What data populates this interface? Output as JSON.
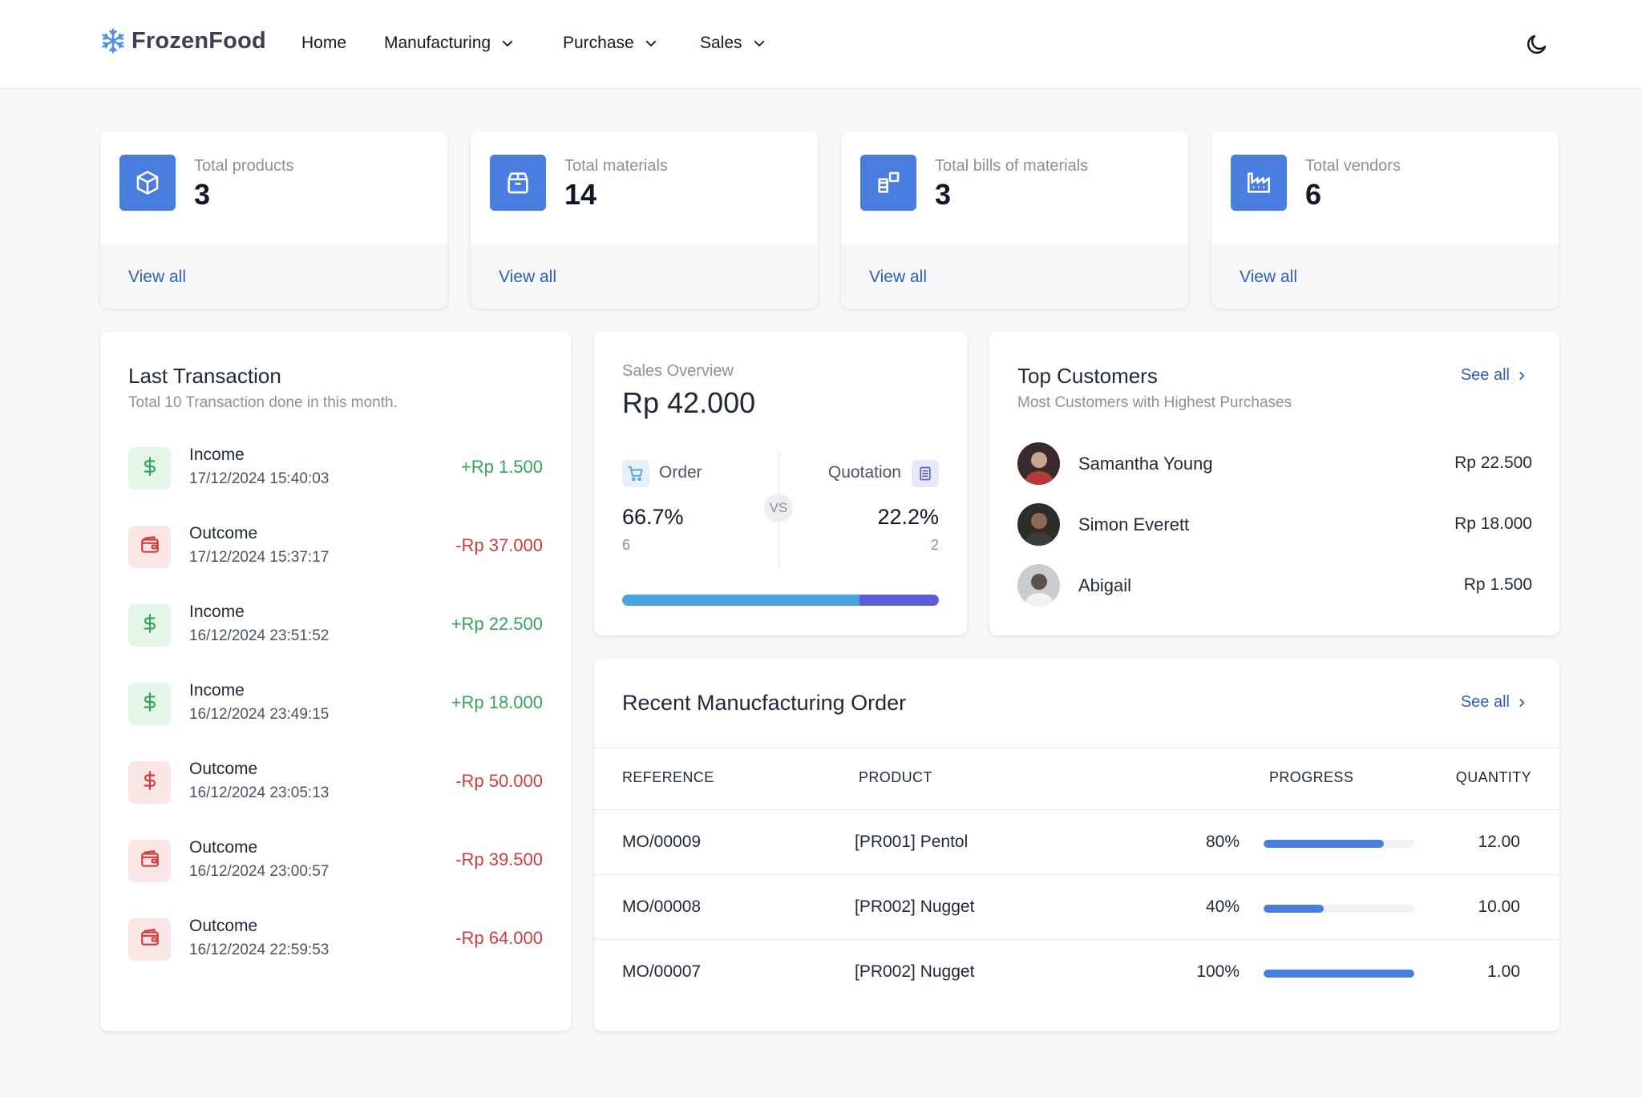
{
  "brand": {
    "name": "FrozenFood"
  },
  "nav": {
    "home": "Home",
    "manufacturing": "Manufacturing",
    "purchase": "Purchase",
    "sales": "Sales"
  },
  "stats": [
    {
      "label": "Total products",
      "value": "3",
      "link": "View all",
      "icon": "cube-icon"
    },
    {
      "label": "Total materials",
      "value": "14",
      "link": "View all",
      "icon": "package-icon"
    },
    {
      "label": "Total bills of materials",
      "value": "3",
      "link": "View all",
      "icon": "blocks-icon"
    },
    {
      "label": "Total vendors",
      "value": "6",
      "link": "View all",
      "icon": "factory-icon"
    }
  ],
  "last_transaction": {
    "title": "Last Transaction",
    "subtitle": "Total 10 Transaction done in this month.",
    "items": [
      {
        "type": "Income",
        "date": "17/12/2024 15:40:03",
        "amount": "+Rp 1.500",
        "kind": "income",
        "icon": "dollar-icon"
      },
      {
        "type": "Outcome",
        "date": "17/12/2024 15:37:17",
        "amount": "-Rp 37.000",
        "kind": "outcome",
        "icon": "wallet-icon"
      },
      {
        "type": "Income",
        "date": "16/12/2024 23:51:52",
        "amount": "+Rp 22.500",
        "kind": "income",
        "icon": "dollar-icon"
      },
      {
        "type": "Income",
        "date": "16/12/2024 23:49:15",
        "amount": "+Rp 18.000",
        "kind": "income",
        "icon": "dollar-icon"
      },
      {
        "type": "Outcome",
        "date": "16/12/2024 23:05:13",
        "amount": "-Rp 50.000",
        "kind": "outcome",
        "icon": "dollar-icon"
      },
      {
        "type": "Outcome",
        "date": "16/12/2024 23:00:57",
        "amount": "-Rp 39.500",
        "kind": "outcome",
        "icon": "wallet-icon"
      },
      {
        "type": "Outcome",
        "date": "16/12/2024 22:59:53",
        "amount": "-Rp 64.000",
        "kind": "outcome",
        "icon": "wallet-icon"
      }
    ]
  },
  "sales_overview": {
    "label": "Sales Overview",
    "value": "Rp 42.000",
    "order": {
      "label": "Order",
      "percent": "66.7%",
      "count": "6"
    },
    "quotation": {
      "label": "Quotation",
      "percent": "22.2%",
      "count": "2"
    },
    "vs": "VS",
    "bar": {
      "order_fraction": 0.75,
      "quotation_fraction": 0.25
    }
  },
  "top_customers": {
    "title": "Top Customers",
    "subtitle": "Most Customers with Highest Purchases",
    "see_all": "See all",
    "items": [
      {
        "name": "Samantha Young",
        "amount": "Rp 22.500"
      },
      {
        "name": "Simon Everett",
        "amount": "Rp 18.000"
      },
      {
        "name": "Abigail",
        "amount": "Rp 1.500"
      }
    ]
  },
  "manufacturing_orders": {
    "title": "Recent Manucfacturing Order",
    "see_all": "See all",
    "headers": {
      "reference": "REFERENCE",
      "product": "PRODUCT",
      "progress": "PROGRESS",
      "quantity": "QUANTITY"
    },
    "rows": [
      {
        "reference": "MO/00009",
        "product": "[PR001] Pentol",
        "progress_label": "80%",
        "progress": 0.8,
        "quantity": "12.00"
      },
      {
        "reference": "MO/00008",
        "product": "[PR002] Nugget",
        "progress_label": "40%",
        "progress": 0.4,
        "quantity": "10.00"
      },
      {
        "reference": "MO/00007",
        "product": "[PR002] Nugget",
        "progress_label": "100%",
        "progress": 1.0,
        "quantity": "1.00"
      }
    ]
  },
  "colors": {
    "accent": "#4a7de0",
    "link": "#2f5fb3",
    "income": "#3aa35a",
    "outcome": "#cf3e3e",
    "order_bar": "#4aa3e0",
    "quotation_bar": "#5b5fd6"
  }
}
